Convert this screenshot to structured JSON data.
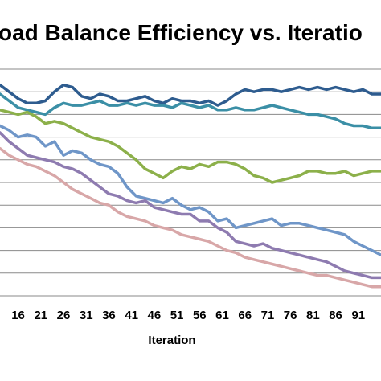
{
  "chart_data": {
    "type": "line",
    "title": "oad Balance Efficiency vs. Iteratio",
    "xlabel": "Iteration",
    "ylabel": "",
    "x_ticks": [
      "16",
      "21",
      "26",
      "31",
      "36",
      "41",
      "46",
      "51",
      "56",
      "61",
      "66",
      "71",
      "76",
      "81",
      "86",
      "91"
    ],
    "xlim": [
      12,
      96
    ],
    "ylim": [
      0,
      100
    ],
    "grid": true,
    "legend": "none",
    "series": [
      {
        "color": "#2E5C8F",
        "points": [
          [
            12,
            93
          ],
          [
            14,
            90
          ],
          [
            16,
            87
          ],
          [
            18,
            85
          ],
          [
            20,
            85
          ],
          [
            22,
            86
          ],
          [
            24,
            90
          ],
          [
            26,
            93
          ],
          [
            28,
            92
          ],
          [
            30,
            88
          ],
          [
            32,
            87
          ],
          [
            34,
            89
          ],
          [
            36,
            88
          ],
          [
            38,
            86
          ],
          [
            40,
            86
          ],
          [
            42,
            87
          ],
          [
            44,
            88
          ],
          [
            46,
            86
          ],
          [
            48,
            85
          ],
          [
            50,
            87
          ],
          [
            52,
            86
          ],
          [
            54,
            86
          ],
          [
            56,
            85
          ],
          [
            58,
            86
          ],
          [
            60,
            84
          ],
          [
            62,
            86
          ],
          [
            64,
            89
          ],
          [
            66,
            91
          ],
          [
            68,
            90
          ],
          [
            70,
            91
          ],
          [
            72,
            91
          ],
          [
            74,
            90
          ],
          [
            76,
            91
          ],
          [
            78,
            92
          ],
          [
            80,
            91
          ],
          [
            82,
            92
          ],
          [
            84,
            91
          ],
          [
            86,
            92
          ],
          [
            88,
            91
          ],
          [
            90,
            90
          ],
          [
            92,
            91
          ],
          [
            94,
            89
          ],
          [
            96,
            89
          ]
        ]
      },
      {
        "color": "#3B8FA6",
        "points": [
          [
            12,
            89
          ],
          [
            14,
            86
          ],
          [
            16,
            83
          ],
          [
            18,
            82
          ],
          [
            20,
            81
          ],
          [
            22,
            80
          ],
          [
            24,
            83
          ],
          [
            26,
            85
          ],
          [
            28,
            84
          ],
          [
            30,
            84
          ],
          [
            32,
            85
          ],
          [
            34,
            86
          ],
          [
            36,
            84
          ],
          [
            38,
            84
          ],
          [
            40,
            85
          ],
          [
            42,
            84
          ],
          [
            44,
            85
          ],
          [
            46,
            84
          ],
          [
            48,
            84
          ],
          [
            50,
            83
          ],
          [
            52,
            85
          ],
          [
            54,
            84
          ],
          [
            56,
            83
          ],
          [
            58,
            84
          ],
          [
            60,
            82
          ],
          [
            62,
            82
          ],
          [
            64,
            83
          ],
          [
            66,
            82
          ],
          [
            68,
            82
          ],
          [
            70,
            83
          ],
          [
            72,
            84
          ],
          [
            74,
            83
          ],
          [
            76,
            82
          ],
          [
            78,
            81
          ],
          [
            80,
            80
          ],
          [
            82,
            80
          ],
          [
            84,
            79
          ],
          [
            86,
            78
          ],
          [
            88,
            76
          ],
          [
            90,
            75
          ],
          [
            92,
            75
          ],
          [
            94,
            74
          ],
          [
            96,
            74
          ]
        ]
      },
      {
        "color": "#8CB04A",
        "points": [
          [
            12,
            82
          ],
          [
            14,
            81
          ],
          [
            16,
            80
          ],
          [
            18,
            81
          ],
          [
            20,
            79
          ],
          [
            22,
            76
          ],
          [
            24,
            77
          ],
          [
            26,
            76
          ],
          [
            28,
            74
          ],
          [
            30,
            72
          ],
          [
            32,
            70
          ],
          [
            34,
            69
          ],
          [
            36,
            68
          ],
          [
            38,
            66
          ],
          [
            40,
            63
          ],
          [
            42,
            60
          ],
          [
            44,
            56
          ],
          [
            46,
            54
          ],
          [
            48,
            52
          ],
          [
            50,
            55
          ],
          [
            52,
            57
          ],
          [
            54,
            56
          ],
          [
            56,
            58
          ],
          [
            58,
            57
          ],
          [
            60,
            59
          ],
          [
            62,
            59
          ],
          [
            64,
            58
          ],
          [
            66,
            56
          ],
          [
            68,
            53
          ],
          [
            70,
            52
          ],
          [
            72,
            50
          ],
          [
            74,
            51
          ],
          [
            76,
            52
          ],
          [
            78,
            53
          ],
          [
            80,
            55
          ],
          [
            82,
            55
          ],
          [
            84,
            54
          ],
          [
            86,
            54
          ],
          [
            88,
            55
          ],
          [
            90,
            53
          ],
          [
            92,
            54
          ],
          [
            94,
            55
          ],
          [
            96,
            55
          ]
        ]
      },
      {
        "color": "#6F96C8",
        "points": [
          [
            12,
            75
          ],
          [
            14,
            73
          ],
          [
            16,
            70
          ],
          [
            18,
            71
          ],
          [
            20,
            70
          ],
          [
            22,
            66
          ],
          [
            24,
            68
          ],
          [
            26,
            62
          ],
          [
            28,
            64
          ],
          [
            30,
            63
          ],
          [
            32,
            60
          ],
          [
            34,
            58
          ],
          [
            36,
            57
          ],
          [
            38,
            54
          ],
          [
            40,
            48
          ],
          [
            42,
            44
          ],
          [
            44,
            43
          ],
          [
            46,
            42
          ],
          [
            48,
            41
          ],
          [
            50,
            43
          ],
          [
            52,
            40
          ],
          [
            54,
            38
          ],
          [
            56,
            39
          ],
          [
            58,
            37
          ],
          [
            60,
            33
          ],
          [
            62,
            34
          ],
          [
            64,
            30
          ],
          [
            66,
            31
          ],
          [
            68,
            32
          ],
          [
            70,
            33
          ],
          [
            72,
            34
          ],
          [
            74,
            31
          ],
          [
            76,
            32
          ],
          [
            78,
            32
          ],
          [
            80,
            31
          ],
          [
            82,
            30
          ],
          [
            84,
            29
          ],
          [
            86,
            28
          ],
          [
            88,
            27
          ],
          [
            90,
            24
          ],
          [
            92,
            22
          ],
          [
            94,
            20
          ],
          [
            96,
            18
          ]
        ]
      },
      {
        "color": "#8E7BB0",
        "points": [
          [
            12,
            72
          ],
          [
            14,
            68
          ],
          [
            16,
            65
          ],
          [
            18,
            62
          ],
          [
            20,
            61
          ],
          [
            22,
            60
          ],
          [
            24,
            59
          ],
          [
            26,
            57
          ],
          [
            28,
            56
          ],
          [
            30,
            54
          ],
          [
            32,
            51
          ],
          [
            34,
            48
          ],
          [
            36,
            45
          ],
          [
            38,
            44
          ],
          [
            40,
            42
          ],
          [
            42,
            41
          ],
          [
            44,
            42
          ],
          [
            46,
            39
          ],
          [
            48,
            38
          ],
          [
            50,
            37
          ],
          [
            52,
            36
          ],
          [
            54,
            36
          ],
          [
            56,
            33
          ],
          [
            58,
            33
          ],
          [
            60,
            30
          ],
          [
            62,
            28
          ],
          [
            64,
            24
          ],
          [
            66,
            23
          ],
          [
            68,
            22
          ],
          [
            70,
            23
          ],
          [
            72,
            21
          ],
          [
            74,
            20
          ],
          [
            76,
            19
          ],
          [
            78,
            18
          ],
          [
            80,
            17
          ],
          [
            82,
            16
          ],
          [
            84,
            15
          ],
          [
            86,
            13
          ],
          [
            88,
            11
          ],
          [
            90,
            10
          ],
          [
            92,
            9
          ],
          [
            94,
            8
          ],
          [
            96,
            8
          ]
        ]
      },
      {
        "color": "#D8A7A8",
        "points": [
          [
            12,
            65
          ],
          [
            14,
            62
          ],
          [
            16,
            60
          ],
          [
            18,
            58
          ],
          [
            20,
            57
          ],
          [
            22,
            55
          ],
          [
            24,
            53
          ],
          [
            26,
            50
          ],
          [
            28,
            47
          ],
          [
            30,
            45
          ],
          [
            32,
            43
          ],
          [
            34,
            41
          ],
          [
            36,
            40
          ],
          [
            38,
            37
          ],
          [
            40,
            35
          ],
          [
            42,
            34
          ],
          [
            44,
            33
          ],
          [
            46,
            31
          ],
          [
            48,
            30
          ],
          [
            50,
            29
          ],
          [
            52,
            27
          ],
          [
            54,
            26
          ],
          [
            56,
            25
          ],
          [
            58,
            24
          ],
          [
            60,
            22
          ],
          [
            62,
            20
          ],
          [
            64,
            19
          ],
          [
            66,
            17
          ],
          [
            68,
            16
          ],
          [
            70,
            15
          ],
          [
            72,
            14
          ],
          [
            74,
            13
          ],
          [
            76,
            12
          ],
          [
            78,
            11
          ],
          [
            80,
            10
          ],
          [
            82,
            9
          ],
          [
            84,
            9
          ],
          [
            86,
            8
          ],
          [
            88,
            7
          ],
          [
            90,
            6
          ],
          [
            92,
            5
          ],
          [
            94,
            4
          ],
          [
            96,
            4
          ]
        ]
      }
    ]
  }
}
